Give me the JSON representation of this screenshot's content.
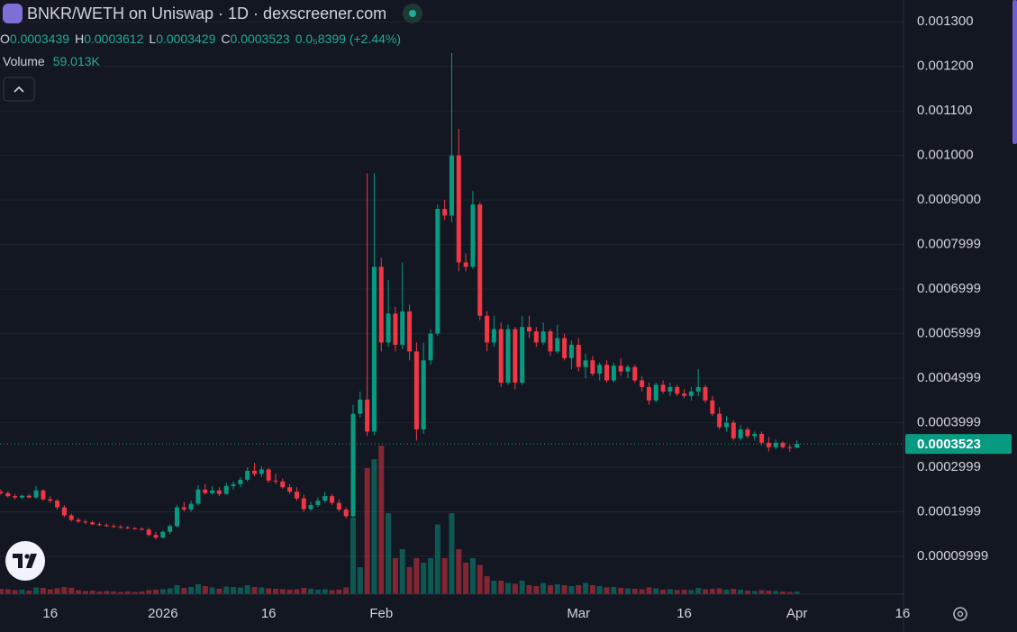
{
  "chart_data": {
    "type": "candlestick",
    "title": "BNKR/WETH on Uniswap · 1D · dexscreener.com",
    "legend": {
      "o": "O",
      "h": "H",
      "l": "L",
      "c": "C",
      "change": "0.0₅8399 (+2.44%)",
      "volume_name": "Volume",
      "volume_value": "59.013K"
    },
    "up_color": "#089981",
    "down_color": "#f23645",
    "grid": true,
    "last_price_line": true,
    "categories": [
      null,
      null,
      null,
      null,
      null,
      null,
      null,
      "16",
      null,
      null,
      null,
      null,
      null,
      null,
      null,
      null,
      null,
      null,
      null,
      null,
      null,
      null,
      null,
      "2026",
      null,
      null,
      null,
      null,
      null,
      null,
      null,
      null,
      null,
      null,
      null,
      null,
      null,
      null,
      "16",
      null,
      null,
      null,
      null,
      null,
      null,
      null,
      null,
      null,
      null,
      null,
      null,
      null,
      null,
      null,
      "Feb",
      null,
      null,
      null,
      null,
      null,
      null,
      null,
      null,
      null,
      null,
      null,
      null,
      null,
      null,
      null,
      null,
      null,
      null,
      null,
      null,
      null,
      null,
      null,
      null,
      null,
      null,
      null,
      "Mar",
      null,
      null,
      null,
      null,
      null,
      null,
      null,
      null,
      null,
      null,
      null,
      null,
      null,
      null,
      "16",
      null,
      null,
      null,
      null,
      null,
      null,
      null,
      null,
      null,
      null,
      null,
      null,
      null,
      null,
      null,
      "Apr",
      null,
      null,
      null,
      null,
      null,
      null,
      null,
      null,
      null,
      null,
      null,
      null,
      null,
      null,
      "16"
    ],
    "open": [
      0.000245,
      0.000242,
      0.000235,
      0.000232,
      0.000236,
      0.000232,
      0.000248,
      0.000228,
      0.000225,
      0.00021,
      0.000192,
      0.000182,
      0.000178,
      0.000176,
      0.000172,
      0.00017,
      0.000168,
      0.000166,
      0.000165,
      0.000163,
      0.000162,
      0.00016,
      0.000148,
      0.000142,
      0.000155,
      0.000168,
      0.00021,
      0.000205,
      0.000218,
      0.00025,
      0.000242,
      0.000248,
      0.00024,
      0.000258,
      0.000262,
      0.000272,
      0.000292,
      0.000285,
      0.000295,
      0.00027,
      0.000268,
      0.000255,
      0.000245,
      0.00023,
      0.000206,
      0.000215,
      0.000225,
      0.000235,
      0.00022,
      0.000205,
      0.00019,
      0.00042,
      0.000452,
      0.00038,
      0.00075,
      0.00058,
      0.000645,
      0.000575,
      0.00065,
      0.00056,
      0.000385,
      0.00054,
      0.0006,
      0.00088,
      0.000865,
      0.001,
      0.00076,
      0.00075,
      0.00089,
      0.00064,
      0.00058,
      0.00061,
      0.00049,
      0.00061,
      0.00049,
      0.000615,
      0.000605,
      0.00058,
      0.000605,
      0.00056,
      0.00059,
      0.000545,
      0.000575,
      0.000525,
      0.00054,
      0.00051,
      0.00053,
      0.000495,
      0.000528,
      0.000515,
      0.000525,
      0.000495,
      0.00048,
      0.00045,
      0.000485,
      0.00047,
      0.00048,
      0.000465,
      0.00046,
      0.00047,
      0.00048,
      0.00045,
      0.00042,
      0.00039,
      0.0004,
      0.000365,
      0.000385,
      0.00037,
      0.000375,
      0.000355,
      0.000345,
      0.000355,
      0.000345,
      0.0003439,
      null,
      null,
      null,
      null,
      null,
      null,
      null,
      null,
      null,
      null,
      null,
      null,
      null,
      null,
      null
    ],
    "high": [
      0.00025,
      0.000246,
      0.00024,
      0.000238,
      0.00024,
      0.000258,
      0.00025,
      0.000235,
      0.000228,
      0.000215,
      0.000196,
      0.000186,
      0.000182,
      0.00018,
      0.000176,
      0.000174,
      0.000172,
      0.00017,
      0.000168,
      0.000166,
      0.000165,
      0.000164,
      0.000155,
      0.000158,
      0.000172,
      0.000215,
      0.000222,
      0.000225,
      0.00026,
      0.000262,
      0.000258,
      0.000255,
      0.000265,
      0.000268,
      0.000278,
      0.0003,
      0.00031,
      0.000302,
      0.000298,
      0.000285,
      0.000275,
      0.000262,
      0.000255,
      0.000238,
      0.000222,
      0.000232,
      0.000245,
      0.00024,
      0.000228,
      0.00021,
      0.00044,
      0.00047,
      0.00096,
      0.00096,
      0.00077,
      0.00072,
      0.00066,
      0.00076,
      0.000665,
      0.00058,
      0.00058,
      0.00061,
      0.00089,
      0.0009,
      0.00123,
      0.00106,
      0.00078,
      0.00092,
      0.000895,
      0.00065,
      0.00064,
      0.000625,
      0.00062,
      0.000615,
      0.00064,
      0.00064,
      0.000615,
      0.000625,
      0.00061,
      0.00062,
      0.0006,
      0.000585,
      0.00059,
      0.000555,
      0.00055,
      0.000535,
      0.00054,
      0.000535,
      0.000545,
      0.00053,
      0.00053,
      0.000505,
      0.00049,
      0.00049,
      0.000495,
      0.00049,
      0.000485,
      0.000475,
      0.00048,
      0.00052,
      0.000485,
      0.00046,
      0.000435,
      0.000415,
      0.000405,
      0.000395,
      0.00039,
      0.00038,
      0.00038,
      0.000368,
      0.000362,
      0.000358,
      0.00035,
      0.0003612,
      null,
      null,
      null,
      null,
      null,
      null,
      null,
      null,
      null,
      null,
      null,
      null,
      null,
      null,
      null
    ],
    "low": [
      0.000238,
      0.000232,
      0.000228,
      0.000228,
      0.00023,
      0.00023,
      0.000225,
      0.00022,
      0.000205,
      0.000188,
      0.000178,
      0.000175,
      0.000172,
      0.00017,
      0.000168,
      0.000166,
      0.000164,
      0.000162,
      0.000161,
      0.00016,
      0.000158,
      0.000145,
      0.000138,
      0.00014,
      0.00015,
      0.000165,
      0.0002,
      0.0002,
      0.000214,
      0.000238,
      0.000238,
      0.000235,
      0.000238,
      0.00025,
      0.000255,
      0.000268,
      0.00028,
      0.000278,
      0.000265,
      0.000262,
      0.000252,
      0.00024,
      0.000225,
      0.0002,
      0.000202,
      0.00021,
      0.00022,
      0.000215,
      0.0002,
      0.000185,
      0.000188,
      0.000412,
      0.00037,
      0.000372,
      0.00056,
      0.00057,
      0.00056,
      0.000565,
      0.00054,
      0.00036,
      0.000375,
      0.00053,
      0.000595,
      0.000855,
      0.00085,
      0.00074,
      0.00074,
      0.000745,
      0.00063,
      0.00056,
      0.00057,
      0.00048,
      0.000485,
      0.000475,
      0.000485,
      0.00059,
      0.00057,
      0.000575,
      0.00055,
      0.000555,
      0.00054,
      0.00052,
      0.000515,
      0.0005,
      0.000505,
      0.000495,
      0.00049,
      0.00049,
      0.000505,
      0.0005,
      0.00049,
      0.00047,
      0.00044,
      0.000445,
      0.000465,
      0.00046,
      0.00046,
      0.000455,
      0.00045,
      0.00046,
      0.000445,
      0.000415,
      0.000385,
      0.00038,
      0.00036,
      0.00036,
      0.000365,
      0.00036,
      0.00035,
      0.000335,
      0.00034,
      0.000342,
      0.000335,
      0.0003429,
      null,
      null,
      null,
      null,
      null,
      null,
      null,
      null,
      null,
      null,
      null,
      null,
      null,
      null,
      null
    ],
    "close": [
      0.000242,
      0.000235,
      0.000232,
      0.000236,
      0.000232,
      0.000248,
      0.000228,
      0.000225,
      0.00021,
      0.000192,
      0.000182,
      0.000178,
      0.000176,
      0.000172,
      0.00017,
      0.000168,
      0.000166,
      0.000165,
      0.000163,
      0.000162,
      0.00016,
      0.000148,
      0.000142,
      0.000155,
      0.000168,
      0.00021,
      0.000205,
      0.000218,
      0.00025,
      0.000242,
      0.000248,
      0.00024,
      0.000258,
      0.000262,
      0.000272,
      0.000292,
      0.000285,
      0.000295,
      0.00027,
      0.000268,
      0.000255,
      0.000245,
      0.00023,
      0.000206,
      0.000215,
      0.000225,
      0.000235,
      0.00022,
      0.000205,
      0.00019,
      0.00042,
      0.000452,
      0.00038,
      0.00075,
      0.00058,
      0.000645,
      0.000575,
      0.00065,
      0.00056,
      0.000385,
      0.00054,
      0.0006,
      0.00088,
      0.000865,
      0.001,
      0.00076,
      0.00075,
      0.00089,
      0.00064,
      0.00058,
      0.00061,
      0.00049,
      0.00061,
      0.00049,
      0.000615,
      0.000605,
      0.00058,
      0.000605,
      0.00056,
      0.00059,
      0.000545,
      0.000575,
      0.000525,
      0.00054,
      0.00051,
      0.00053,
      0.000495,
      0.000528,
      0.000515,
      0.000525,
      0.000495,
      0.00048,
      0.00045,
      0.000485,
      0.00047,
      0.00048,
      0.000465,
      0.00046,
      0.00047,
      0.00048,
      0.00045,
      0.00042,
      0.00039,
      0.0004,
      0.000365,
      0.000385,
      0.00037,
      0.000375,
      0.000355,
      0.000345,
      0.000355,
      0.000345,
      0.000344,
      0.0003523,
      null,
      null,
      null,
      null,
      null,
      null,
      null,
      null,
      null,
      null,
      null,
      null,
      null,
      null,
      null
    ],
    "volume": [
      120000,
      110000,
      90000,
      100000,
      80000,
      150000,
      140000,
      110000,
      130000,
      160000,
      140000,
      90000,
      70000,
      80000,
      60000,
      70000,
      60000,
      50000,
      60000,
      50000,
      60000,
      90000,
      100000,
      110000,
      130000,
      200000,
      140000,
      160000,
      220000,
      180000,
      150000,
      120000,
      170000,
      160000,
      150000,
      200000,
      160000,
      150000,
      130000,
      120000,
      110000,
      100000,
      110000,
      140000,
      120000,
      100000,
      110000,
      90000,
      100000,
      150000,
      1700000,
      600000,
      2800000,
      3000000,
      3300000,
      1800000,
      800000,
      1000000,
      600000,
      800000,
      700000,
      800000,
      1550000,
      800000,
      1800000,
      1000000,
      700000,
      800000,
      650000,
      400000,
      300000,
      300000,
      250000,
      230000,
      300000,
      200000,
      180000,
      250000,
      200000,
      220000,
      200000,
      180000,
      200000,
      250000,
      200000,
      180000,
      150000,
      160000,
      140000,
      130000,
      120000,
      110000,
      150000,
      130000,
      100000,
      110000,
      90000,
      100000,
      90000,
      140000,
      110000,
      120000,
      130000,
      100000,
      120000,
      100000,
      80000,
      70000,
      90000,
      80000,
      70000,
      60000,
      50000,
      59013,
      null,
      null,
      null,
      null,
      null,
      null,
      null,
      null,
      null,
      null,
      null,
      null,
      null,
      null,
      null
    ],
    "ylim": [
      1.5e-05,
      0.001349
    ],
    "yticks": [
      {
        "value": 0.0013,
        "label": "0.001300"
      },
      {
        "value": 0.0012,
        "label": "0.001200"
      },
      {
        "value": 0.0011,
        "label": "0.001100"
      },
      {
        "value": 0.001,
        "label": "0.001000"
      },
      {
        "value": 0.0009,
        "label": "0.0009000"
      },
      {
        "value": 0.0007999,
        "label": "0.0007999"
      },
      {
        "value": 0.0006999,
        "label": "0.0006999"
      },
      {
        "value": 0.0005999,
        "label": "0.0005999"
      },
      {
        "value": 0.0004999,
        "label": "0.0004999"
      },
      {
        "value": 0.0003999,
        "label": "0.0003999"
      },
      {
        "value": 0.0002999,
        "label": "0.0002999"
      },
      {
        "value": 0.0001999,
        "label": "0.0001999"
      },
      {
        "value": 9.999e-05,
        "label": "0.00009999"
      }
    ]
  }
}
